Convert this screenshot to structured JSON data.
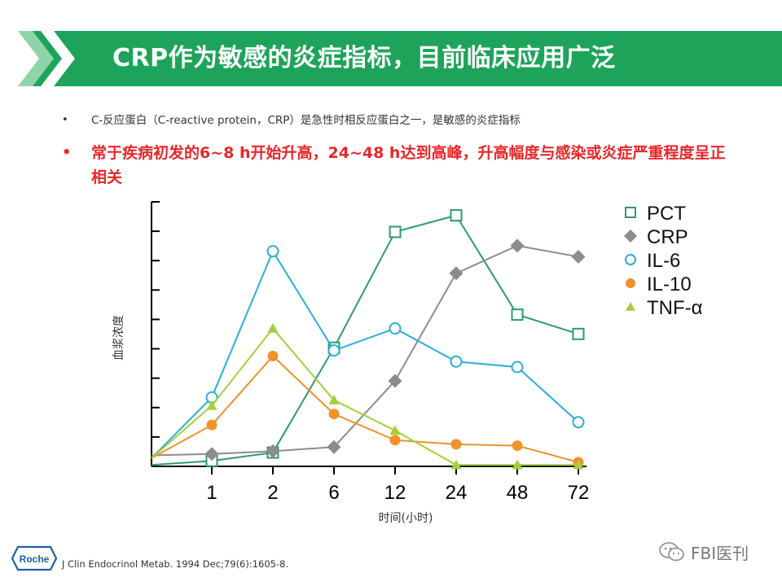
{
  "header": {
    "title": "CRP作为敏感的炎症指标，目前临床应用广泛",
    "colors": {
      "banner": "#1ea45a",
      "arrow": "#2db865",
      "arrow_light": "#8fd4a8"
    }
  },
  "bullets": [
    {
      "marker": "•",
      "text": "C-反应蛋白（C-reactive protein，CRP）是急性时相反应蛋白之一，是敏感的炎症指标"
    },
    {
      "marker": "•",
      "text": "常于疾病初发的6~8 h开始升高，24~48 h达到高峰，升高幅度与感染或炎症严重程度呈正相关"
    }
  ],
  "chart_data": {
    "type": "line",
    "title": "",
    "xlabel": "时间(小时)",
    "ylabel": "血浆浓度",
    "categories": [
      "",
      "1",
      "2",
      "6",
      "12",
      "24",
      "48",
      "72"
    ],
    "ylim": [
      0,
      9
    ],
    "y_ticks": 9,
    "grid": false,
    "legend_position": "right",
    "series": [
      {
        "name": "PCT",
        "color": "#2e9a6e",
        "marker": "square-open",
        "values": [
          0.05,
          0.2,
          0.5,
          4.3,
          8.5,
          9.1,
          5.5,
          4.8
        ]
      },
      {
        "name": "CRP",
        "color": "#8c8c8c",
        "marker": "diamond-filled",
        "values": [
          0.4,
          0.45,
          0.55,
          0.7,
          3.1,
          7.0,
          8.0,
          7.6
        ]
      },
      {
        "name": "IL-6",
        "color": "#2aaed8",
        "marker": "circle-open",
        "values": [
          0.3,
          2.5,
          7.8,
          4.2,
          5.0,
          3.8,
          3.6,
          1.6
        ]
      },
      {
        "name": "IL-10",
        "color": "#f0912c",
        "marker": "circle-filled",
        "values": [
          0.3,
          1.5,
          4.0,
          1.9,
          0.95,
          0.8,
          0.75,
          0.15
        ]
      },
      {
        "name": "TNF-α",
        "color": "#a3cf3c",
        "marker": "triangle-filled",
        "values": [
          0.3,
          2.2,
          5.0,
          2.4,
          1.3,
          0.05,
          0.05,
          0.05
        ]
      }
    ]
  },
  "footer": {
    "logo": "Roche",
    "citation": "J Clin Endocrinol Metab. 1994 Dec;79(6):1605-8.",
    "watermark": "FBI医刊"
  }
}
